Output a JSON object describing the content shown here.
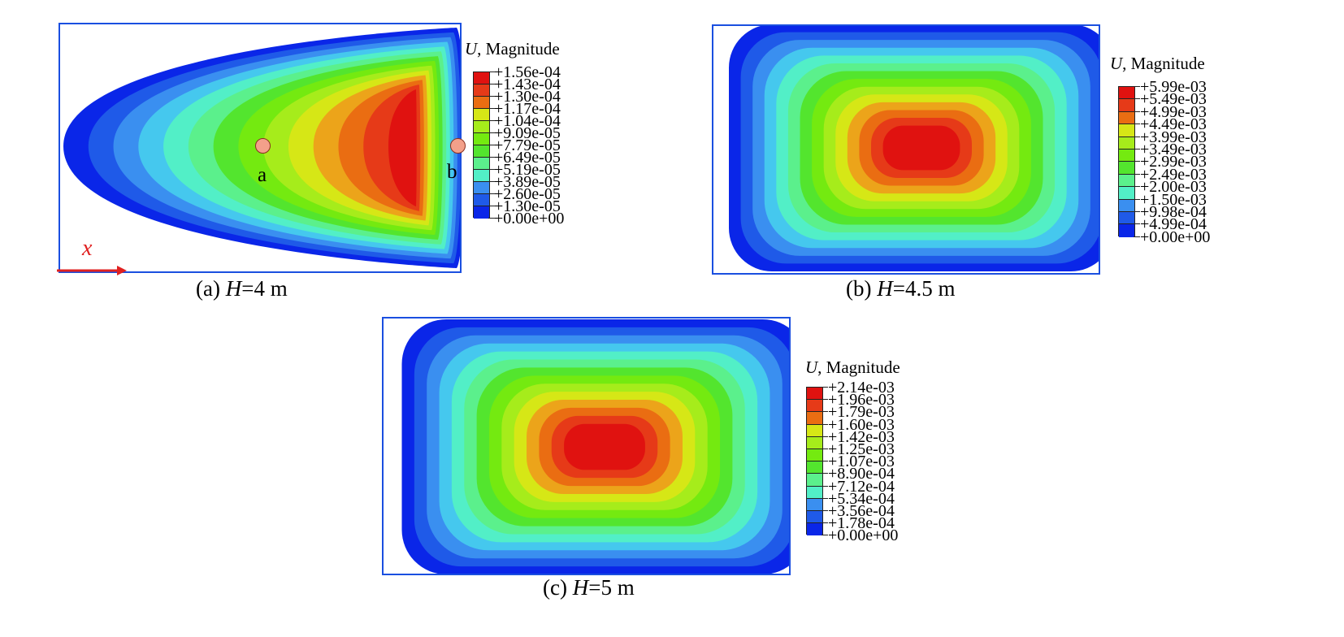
{
  "colors": {
    "scale": [
      "#0a26e8",
      "#1f5ae8",
      "#3a8ff0",
      "#45c8ee",
      "#52efc7",
      "#5bf08c",
      "#53e52e",
      "#74ea10",
      "#a6ec1b",
      "#d6e716",
      "#eca41a",
      "#ea6d12",
      "#e63a18",
      "#e01210"
    ],
    "border": "#1a4fe0",
    "axis": "#e02020",
    "marker": "#f3a08a"
  },
  "panels": [
    {
      "id": "a",
      "legend_title_var": "U",
      "legend_title_rest": ", Magnitude",
      "legend_values": [
        "+1.56e-04",
        "+1.43e-04",
        "+1.30e-04",
        "+1.17e-04",
        "+1.04e-04",
        "+9.09e-05",
        "+7.79e-05",
        "+6.49e-05",
        "+5.19e-05",
        "+3.89e-05",
        "+2.60e-05",
        "+1.30e-05",
        "+0.00e+00"
      ],
      "caption_prefix": "(a) ",
      "caption_var": "H",
      "caption_rest": "=4 m",
      "point_labels": [
        "a",
        "b"
      ],
      "axis_label": "x"
    },
    {
      "id": "b",
      "legend_title_var": "U",
      "legend_title_rest": ", Magnitude",
      "legend_values": [
        "+5.99e-03",
        "+5.49e-03",
        "+4.99e-03",
        "+4.49e-03",
        "+3.99e-03",
        "+3.49e-03",
        "+2.99e-03",
        "+2.49e-03",
        "+2.00e-03",
        "+1.50e-03",
        "+9.98e-04",
        "+4.99e-04",
        "+0.00e+00"
      ],
      "caption_prefix": "(b) ",
      "caption_var": "H",
      "caption_rest": "=4.5 m"
    },
    {
      "id": "c",
      "legend_title_var": "U",
      "legend_title_rest": ", Magnitude",
      "legend_values": [
        "+2.14e-03",
        "+1.96e-03",
        "+1.79e-03",
        "+1.60e-03",
        "+1.42e-03",
        "+1.25e-03",
        "+1.07e-03",
        "+8.90e-04",
        "+7.12e-04",
        "+5.34e-04",
        "+3.56e-04",
        "+1.78e-04",
        "+0.00e+00"
      ],
      "caption_prefix": "(c) ",
      "caption_var": "H",
      "caption_rest": "=5 m"
    }
  ]
}
